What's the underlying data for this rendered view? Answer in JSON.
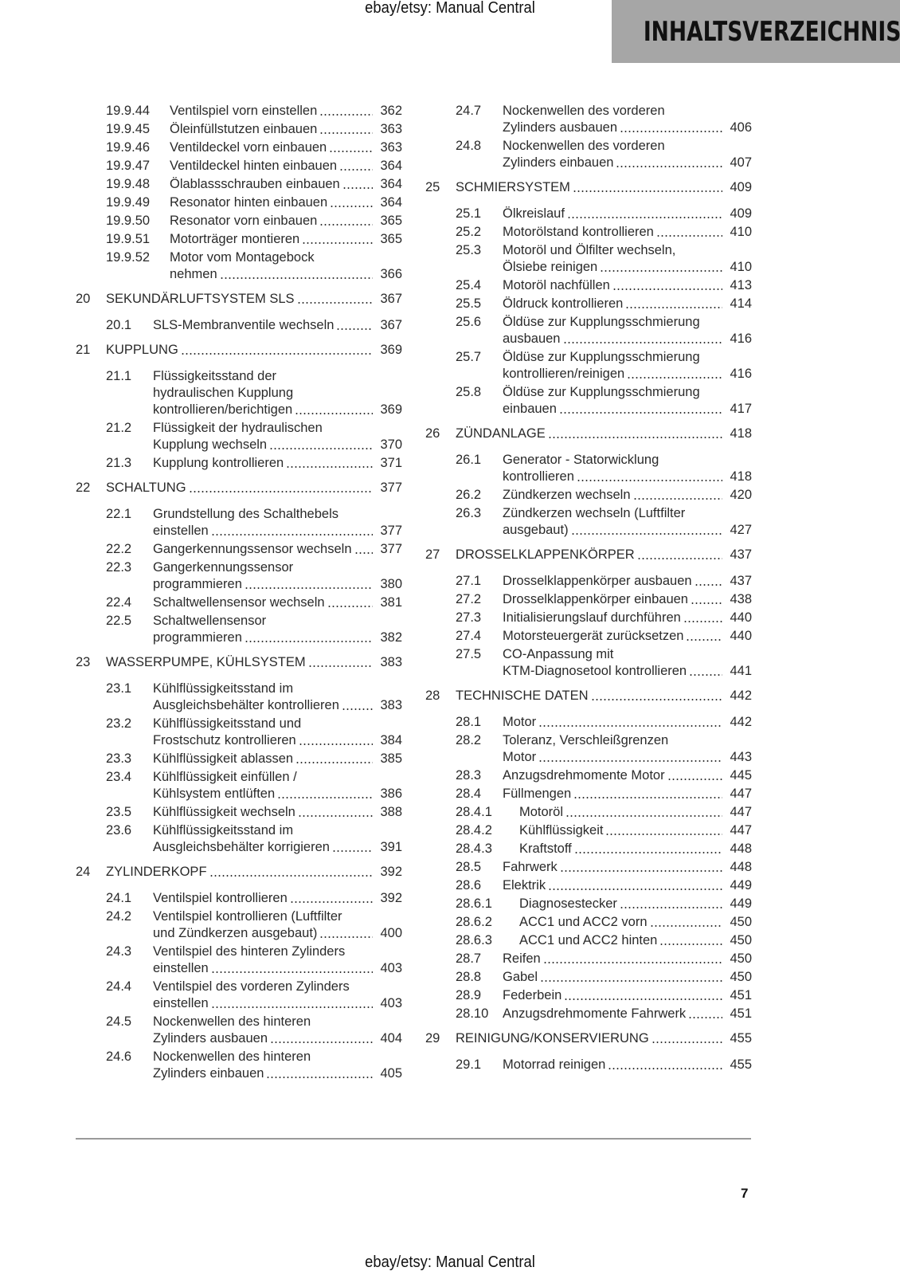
{
  "header": {
    "watermark": "ebay/etsy: Manual Central",
    "title": "INHALTSVERZEICHNIS"
  },
  "footer": {
    "watermark": "ebay/etsy: Manual Central",
    "page_number": "7"
  },
  "toc": {
    "left": [
      {
        "type": "ss",
        "num": "19.9.44",
        "lines": [
          "Ventilspiel vorn einstellen"
        ],
        "page": "362"
      },
      {
        "type": "ss",
        "num": "19.9.45",
        "lines": [
          "Öleinfüllstutzen einbauen"
        ],
        "page": "363"
      },
      {
        "type": "ss",
        "num": "19.9.46",
        "lines": [
          "Ventildeckel vorn einbauen"
        ],
        "page": "363"
      },
      {
        "type": "ss",
        "num": "19.9.47",
        "lines": [
          "Ventildeckel hinten einbauen"
        ],
        "page": "364"
      },
      {
        "type": "ss",
        "num": "19.9.48",
        "lines": [
          "Ölablassschrauben einbauen"
        ],
        "page": "364"
      },
      {
        "type": "ss",
        "num": "19.9.49",
        "lines": [
          "Resonator hinten einbauen"
        ],
        "page": "364"
      },
      {
        "type": "ss",
        "num": "19.9.50",
        "lines": [
          "Resonator vorn einbauen"
        ],
        "page": "365"
      },
      {
        "type": "ss",
        "num": "19.9.51",
        "lines": [
          "Motorträger montieren"
        ],
        "page": "365"
      },
      {
        "type": "ss",
        "num": "19.9.52",
        "lines": [
          "Motor vom Montagebock",
          "nehmen"
        ],
        "page": "366"
      },
      {
        "type": "c",
        "num": "20",
        "lines": [
          "SEKUNDÄRLUFTSYSTEM SLS"
        ],
        "page": "367"
      },
      {
        "type": "s",
        "num": "20.1",
        "lines": [
          "SLS-Membranventile wechseln"
        ],
        "page": "367"
      },
      {
        "type": "c",
        "num": "21",
        "lines": [
          "KUPPLUNG"
        ],
        "page": "369"
      },
      {
        "type": "s",
        "num": "21.1",
        "lines": [
          "Flüssigkeitsstand der",
          "hydraulischen Kupplung",
          "kontrollieren/berichtigen"
        ],
        "page": "369"
      },
      {
        "type": "s",
        "num": "21.2",
        "lines": [
          "Flüssigkeit der hydraulischen",
          "Kupplung wechseln"
        ],
        "page": "370"
      },
      {
        "type": "s",
        "num": "21.3",
        "lines": [
          "Kupplung kontrollieren"
        ],
        "page": "371"
      },
      {
        "type": "c",
        "num": "22",
        "lines": [
          "SCHALTUNG"
        ],
        "page": "377"
      },
      {
        "type": "s",
        "num": "22.1",
        "lines": [
          "Grundstellung des Schalthebels",
          "einstellen"
        ],
        "page": "377"
      },
      {
        "type": "s",
        "num": "22.2",
        "lines": [
          "Gangerkennungssensor wechseln"
        ],
        "page": "377"
      },
      {
        "type": "s",
        "num": "22.3",
        "lines": [
          "Gangerkennungssensor",
          "programmieren"
        ],
        "page": "380"
      },
      {
        "type": "s",
        "num": "22.4",
        "lines": [
          "Schaltwellensensor wechseln"
        ],
        "page": "381"
      },
      {
        "type": "s",
        "num": "22.5",
        "lines": [
          "Schaltwellensensor",
          "programmieren"
        ],
        "page": "382"
      },
      {
        "type": "c",
        "num": "23",
        "lines": [
          "WASSERPUMPE, KÜHLSYSTEM"
        ],
        "page": "383"
      },
      {
        "type": "s",
        "num": "23.1",
        "lines": [
          "Kühlflüssigkeitsstand im",
          "Ausgleichsbehälter kontrollieren"
        ],
        "page": "383"
      },
      {
        "type": "s",
        "num": "23.2",
        "lines": [
          "Kühlflüssigkeitsstand und",
          "Frostschutz kontrollieren"
        ],
        "page": "384"
      },
      {
        "type": "s",
        "num": "23.3",
        "lines": [
          "Kühlflüssigkeit ablassen"
        ],
        "page": "385"
      },
      {
        "type": "s",
        "num": "23.4",
        "lines": [
          "Kühlflüssigkeit einfüllen /",
          "Kühlsystem entlüften"
        ],
        "page": "386"
      },
      {
        "type": "s",
        "num": "23.5",
        "lines": [
          "Kühlflüssigkeit wechseln"
        ],
        "page": "388"
      },
      {
        "type": "s",
        "num": "23.6",
        "lines": [
          "Kühlflüssigkeitsstand im",
          "Ausgleichsbehälter korrigieren"
        ],
        "page": "391"
      },
      {
        "type": "c",
        "num": "24",
        "lines": [
          "ZYLINDERKOPF"
        ],
        "page": "392"
      },
      {
        "type": "s",
        "num": "24.1",
        "lines": [
          "Ventilspiel kontrollieren"
        ],
        "page": "392"
      },
      {
        "type": "s",
        "num": "24.2",
        "lines": [
          "Ventilspiel kontrollieren (Luftfilter",
          "und Zündkerzen ausgebaut)"
        ],
        "page": "400"
      },
      {
        "type": "s",
        "num": "24.3",
        "lines": [
          "Ventilspiel des hinteren Zylinders",
          "einstellen"
        ],
        "page": "403"
      },
      {
        "type": "s",
        "num": "24.4",
        "lines": [
          "Ventilspiel des vorderen Zylinders",
          "einstellen"
        ],
        "page": "403"
      },
      {
        "type": "s",
        "num": "24.5",
        "lines": [
          "Nockenwellen des hinteren",
          "Zylinders ausbauen"
        ],
        "page": "404"
      },
      {
        "type": "s",
        "num": "24.6",
        "lines": [
          "Nockenwellen des hinteren",
          "Zylinders einbauen"
        ],
        "page": "405"
      }
    ],
    "right": [
      {
        "type": "s",
        "num": "24.7",
        "lines": [
          "Nockenwellen des vorderen",
          "Zylinders ausbauen"
        ],
        "page": "406"
      },
      {
        "type": "s",
        "num": "24.8",
        "lines": [
          "Nockenwellen des vorderen",
          "Zylinders einbauen"
        ],
        "page": "407"
      },
      {
        "type": "c",
        "num": "25",
        "lines": [
          "SCHMIERSYSTEM"
        ],
        "page": "409"
      },
      {
        "type": "s",
        "num": "25.1",
        "lines": [
          "Ölkreislauf"
        ],
        "page": "409"
      },
      {
        "type": "s",
        "num": "25.2",
        "lines": [
          "Motorölstand kontrollieren"
        ],
        "page": "410"
      },
      {
        "type": "s",
        "num": "25.3",
        "lines": [
          "Motoröl und Ölfilter wechseln,",
          "Ölsiebe reinigen"
        ],
        "page": "410"
      },
      {
        "type": "s",
        "num": "25.4",
        "lines": [
          "Motoröl nachfüllen"
        ],
        "page": "413"
      },
      {
        "type": "s",
        "num": "25.5",
        "lines": [
          "Öldruck kontrollieren"
        ],
        "page": "414"
      },
      {
        "type": "s",
        "num": "25.6",
        "lines": [
          "Öldüse zur Kupplungsschmierung",
          "ausbauen"
        ],
        "page": "416"
      },
      {
        "type": "s",
        "num": "25.7",
        "lines": [
          "Öldüse zur Kupplungsschmierung",
          "kontrollieren/reinigen"
        ],
        "page": "416"
      },
      {
        "type": "s",
        "num": "25.8",
        "lines": [
          "Öldüse zur Kupplungsschmierung",
          "einbauen"
        ],
        "page": "417"
      },
      {
        "type": "c",
        "num": "26",
        "lines": [
          "ZÜNDANLAGE"
        ],
        "page": "418"
      },
      {
        "type": "s",
        "num": "26.1",
        "lines": [
          "Generator - Statorwicklung",
          "kontrollieren"
        ],
        "page": "418"
      },
      {
        "type": "s",
        "num": "26.2",
        "lines": [
          "Zündkerzen wechseln"
        ],
        "page": "420"
      },
      {
        "type": "s",
        "num": "26.3",
        "lines": [
          "Zündkerzen wechseln (Luftfilter",
          "ausgebaut)"
        ],
        "page": "427"
      },
      {
        "type": "c",
        "num": "27",
        "lines": [
          "DROSSELKLAPPENKÖRPER"
        ],
        "page": "437"
      },
      {
        "type": "s",
        "num": "27.1",
        "lines": [
          "Drosselklappenkörper ausbauen"
        ],
        "page": "437"
      },
      {
        "type": "s",
        "num": "27.2",
        "lines": [
          "Drosselklappenkörper einbauen"
        ],
        "page": "438"
      },
      {
        "type": "s",
        "num": "27.3",
        "lines": [
          "Initialisierungslauf durchführen"
        ],
        "page": "440"
      },
      {
        "type": "s",
        "num": "27.4",
        "lines": [
          "Motorsteuergerät zurücksetzen"
        ],
        "page": "440"
      },
      {
        "type": "s",
        "num": "27.5",
        "lines": [
          "CO-Anpassung mit",
          "KTM-Diagnosetool kontrollieren"
        ],
        "page": "441"
      },
      {
        "type": "c",
        "num": "28",
        "lines": [
          "TECHNISCHE DATEN"
        ],
        "page": "442"
      },
      {
        "type": "s",
        "num": "28.1",
        "lines": [
          "Motor"
        ],
        "page": "442"
      },
      {
        "type": "s",
        "num": "28.2",
        "lines": [
          "Toleranz, Verschleißgrenzen",
          "Motor"
        ],
        "page": "443"
      },
      {
        "type": "s",
        "num": "28.3",
        "lines": [
          "Anzugsdrehmomente Motor"
        ],
        "page": "445"
      },
      {
        "type": "s",
        "num": "28.4",
        "lines": [
          "Füllmengen"
        ],
        "page": "447"
      },
      {
        "type": "ss",
        "num": "28.4.1",
        "lines": [
          "Motoröl"
        ],
        "page": "447"
      },
      {
        "type": "ss",
        "num": "28.4.2",
        "lines": [
          "Kühlflüssigkeit"
        ],
        "page": "447"
      },
      {
        "type": "ss",
        "num": "28.4.3",
        "lines": [
          "Kraftstoff"
        ],
        "page": "448"
      },
      {
        "type": "s",
        "num": "28.5",
        "lines": [
          "Fahrwerk"
        ],
        "page": "448"
      },
      {
        "type": "s",
        "num": "28.6",
        "lines": [
          "Elektrik"
        ],
        "page": "449"
      },
      {
        "type": "ss",
        "num": "28.6.1",
        "lines": [
          "Diagnosestecker"
        ],
        "page": "449"
      },
      {
        "type": "ss",
        "num": "28.6.2",
        "lines": [
          "ACC1 und ACC2 vorn"
        ],
        "page": "450"
      },
      {
        "type": "ss",
        "num": "28.6.3",
        "lines": [
          "ACC1 und ACC2 hinten"
        ],
        "page": "450"
      },
      {
        "type": "s",
        "num": "28.7",
        "lines": [
          "Reifen"
        ],
        "page": "450"
      },
      {
        "type": "s",
        "num": "28.8",
        "lines": [
          "Gabel"
        ],
        "page": "450"
      },
      {
        "type": "s",
        "num": "28.9",
        "lines": [
          "Federbein"
        ],
        "page": "451"
      },
      {
        "type": "s",
        "num": "28.10",
        "lines": [
          "Anzugsdrehmomente Fahrwerk"
        ],
        "page": "451"
      },
      {
        "type": "c",
        "num": "29",
        "lines": [
          "REINIGUNG/KONSERVIERUNG"
        ],
        "page": "455"
      },
      {
        "type": "s",
        "num": "29.1",
        "lines": [
          "Motorrad reinigen"
        ],
        "page": "455"
      }
    ]
  }
}
